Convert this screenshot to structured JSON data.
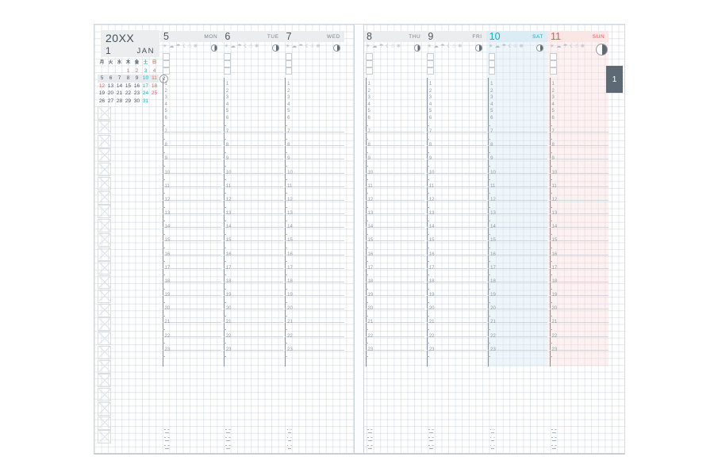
{
  "page": {
    "tab": {
      "label": "1"
    },
    "year_box": {
      "year": "20XX",
      "month_number": "1",
      "month_name": "JAN"
    },
    "mini_calendar": {
      "weekdays": [
        {
          "label": "月",
          "type": "wd"
        },
        {
          "label": "火",
          "type": "wd"
        },
        {
          "label": "水",
          "type": "wd"
        },
        {
          "label": "木",
          "type": "wd"
        },
        {
          "label": "金",
          "type": "wd"
        },
        {
          "label": "土",
          "type": "sat"
        },
        {
          "label": "日",
          "type": "sun"
        }
      ],
      "rows": [
        [
          {
            "day": "",
            "type": "wd"
          },
          {
            "day": "",
            "type": "wd"
          },
          {
            "day": "",
            "type": "wd"
          },
          {
            "day": "1",
            "type": "hol"
          },
          {
            "day": "2",
            "type": "hol"
          },
          {
            "day": "3",
            "type": "sat"
          },
          {
            "day": "4",
            "type": "sun"
          }
        ],
        [
          {
            "day": "5",
            "type": "wd"
          },
          {
            "day": "6",
            "type": "wd"
          },
          {
            "day": "7",
            "type": "wd"
          },
          {
            "day": "8",
            "type": "wd"
          },
          {
            "day": "9",
            "type": "wd"
          },
          {
            "day": "10",
            "type": "sat"
          },
          {
            "day": "11",
            "type": "sun"
          }
        ],
        [
          {
            "day": "12",
            "type": "hol"
          },
          {
            "day": "13",
            "type": "wd"
          },
          {
            "day": "14",
            "type": "wd"
          },
          {
            "day": "15",
            "type": "wd"
          },
          {
            "day": "16",
            "type": "wd"
          },
          {
            "day": "17",
            "type": "sat"
          },
          {
            "day": "18",
            "type": "sun"
          }
        ],
        [
          {
            "day": "19",
            "type": "wd"
          },
          {
            "day": "20",
            "type": "wd"
          },
          {
            "day": "21",
            "type": "wd"
          },
          {
            "day": "22",
            "type": "wd"
          },
          {
            "day": "23",
            "type": "wd"
          },
          {
            "day": "24",
            "type": "sat"
          },
          {
            "day": "25",
            "type": "sun"
          }
        ],
        [
          {
            "day": "26",
            "type": "wd"
          },
          {
            "day": "27",
            "type": "wd"
          },
          {
            "day": "28",
            "type": "wd"
          },
          {
            "day": "29",
            "type": "wd"
          },
          {
            "day": "30",
            "type": "wd"
          },
          {
            "day": "31",
            "type": "sat"
          },
          {
            "day": "",
            "type": "wd"
          }
        ]
      ],
      "highlighted_row_index": 1,
      "week_number": "2"
    },
    "week_days": [
      {
        "num": "5",
        "name": "MON",
        "type": "weekday"
      },
      {
        "num": "6",
        "name": "TUE",
        "type": "weekday"
      },
      {
        "num": "7",
        "name": "WED",
        "type": "weekday"
      },
      {
        "num": "8",
        "name": "THU",
        "type": "weekday"
      },
      {
        "num": "9",
        "name": "FRI",
        "type": "weekday"
      },
      {
        "num": "10",
        "name": "SAT",
        "type": "saturday"
      },
      {
        "num": "11",
        "name": "SUN",
        "type": "sunday"
      }
    ],
    "timeline": {
      "compressed_hours": [
        "1",
        "2",
        "3",
        "4",
        "5",
        "6"
      ],
      "full_hours": [
        "7",
        "8",
        "9",
        "10",
        "11",
        "12",
        "13",
        "14",
        "15",
        "16",
        "17",
        "18",
        "19",
        "20",
        "21",
        "22",
        "23"
      ]
    },
    "weather_icons": [
      {
        "name": "sun-icon",
        "glyph": "☀"
      },
      {
        "name": "cloud-icon",
        "glyph": "☁"
      },
      {
        "name": "umbrella-icon",
        "glyph": "☂"
      },
      {
        "name": "lightning-icon",
        "glyph": "☇"
      },
      {
        "name": "snowman-icon",
        "glyph": "☃"
      },
      {
        "name": "snowflake-icon",
        "glyph": "❄"
      }
    ],
    "left_margin_box_count": 24,
    "checkboxes_per_day": 3,
    "mood_faces": [
      {
        "name": "face-happy-icon"
      },
      {
        "name": "face-neutral-icon"
      },
      {
        "name": "face-sad-icon"
      }
    ],
    "colors": {
      "accent_saturday": "#0caec9",
      "accent_sunday": "#ef5350",
      "header_band": "#ebedef",
      "saturday_band": "#dcecf5",
      "sunday_band": "#fbe6e6",
      "tab_background": "#5d6a74",
      "text_dark": "#4b5560",
      "text_gray": "#7b848d"
    }
  }
}
